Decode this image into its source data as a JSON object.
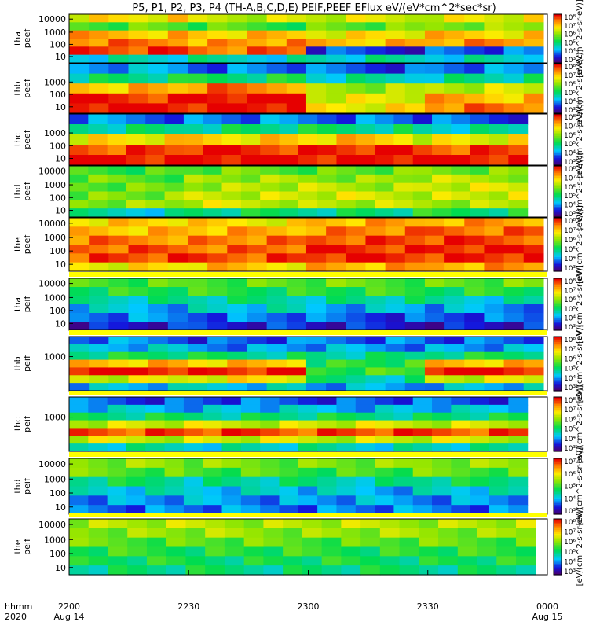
{
  "chart_data": {
    "type": "heatmap",
    "title": "P5, P1, P2, P3, P4 (TH-A,B,C,D,E) PEIF,PEEF EFlux eV/(eV*cm^2*sec*sr)",
    "colorbar_label": "[eV/(cm^2-s-sr-eV)]",
    "colormap": "rainbow",
    "x_axis": {
      "time_label": "hhmm",
      "year_label": "2020",
      "ticks": [
        {
          "time": "2200",
          "date": "Aug 14"
        },
        {
          "time": "2230",
          "date": ""
        },
        {
          "time": "2300",
          "date": ""
        },
        {
          "time": "2330",
          "date": ""
        },
        {
          "time": "0000",
          "date": "Aug 15"
        }
      ],
      "range": [
        "2020-08-14 22:00",
        "2020-08-15 00:00"
      ]
    },
    "panels": [
      {
        "probe": "tha",
        "species": "peef",
        "y_ticks": [
          "10000",
          "1000",
          "100",
          "10"
        ],
        "log_y": true,
        "cb_ticks": [
          "10⁸",
          "10⁷",
          "10⁶",
          "10⁵",
          "10⁴",
          "10³"
        ],
        "data_end": "23:59",
        "levels": [
          [
            2.2,
            1.6,
            2.4,
            2.6,
            2.8,
            1.0
          ],
          [
            2.0,
            1.5,
            2.3,
            2.5,
            2.7,
            1.0
          ],
          [
            2.0,
            1.6,
            2.2,
            2.4,
            0.4,
            1.0
          ],
          [
            2.1,
            1.8,
            2.3,
            2.5,
            0.5,
            1.0
          ]
        ]
      },
      {
        "probe": "thb",
        "species": "peef",
        "y_ticks": [
          "1000",
          "100",
          "10"
        ],
        "log_y": true,
        "cb_ticks": [
          "10⁸",
          "10⁷",
          "10⁶",
          "10⁵",
          "10⁴",
          "10³"
        ],
        "data_end": "23:59",
        "levels": [
          [
            0.7,
            1.2,
            2.4,
            2.9,
            3.0
          ],
          [
            0.6,
            1.3,
            2.6,
            3.0,
            3.0
          ],
          [
            0.5,
            1.0,
            1.8,
            2.1,
            2.2
          ],
          [
            0.6,
            1.1,
            2.0,
            2.4,
            2.6
          ]
        ]
      },
      {
        "probe": "thc",
        "species": "peef",
        "y_ticks": [
          "1000",
          "100",
          "10"
        ],
        "log_y": true,
        "cb_ticks": [
          "10⁸",
          "10⁷",
          "10⁶",
          "10⁵",
          "10⁴",
          "10³"
        ],
        "data_end": "23:55",
        "levels": [
          [
            0.6,
            1.1,
            2.2,
            2.8,
            3.0
          ],
          [
            0.6,
            1.2,
            2.3,
            2.9,
            3.0
          ],
          [
            0.6,
            1.2,
            2.3,
            2.9,
            3.0
          ],
          [
            0.5,
            1.0,
            2.1,
            2.8,
            3.0
          ]
        ]
      },
      {
        "probe": "thd",
        "species": "peef",
        "y_ticks": [
          "10000",
          "1000",
          "100",
          "10"
        ],
        "log_y": true,
        "cb_ticks": [
          "10⁸",
          "10⁷",
          "10⁶",
          "10⁵",
          "10⁴",
          "10³"
        ],
        "data_end": "23:55",
        "levels": [
          [
            1.5,
            1.6,
            1.6,
            1.7,
            1.8,
            1.0
          ],
          [
            1.6,
            1.8,
            1.9,
            2.0,
            2.0,
            1.2
          ],
          [
            1.6,
            1.8,
            1.9,
            2.0,
            1.9,
            1.2
          ],
          [
            1.7,
            1.9,
            2.0,
            2.0,
            1.9,
            1.3
          ]
        ]
      },
      {
        "probe": "the",
        "species": "peef",
        "y_ticks": [
          "10000",
          "1000",
          "100",
          "10"
        ],
        "log_y": true,
        "cb_ticks": [
          "10⁸",
          "10⁷",
          "10⁶",
          "10⁵",
          "10⁴",
          "10³"
        ],
        "data_end": "23:59",
        "levels": [
          [
            2.3,
            2.4,
            2.6,
            2.7,
            2.8,
            2.2
          ],
          [
            2.2,
            2.4,
            2.6,
            2.7,
            2.8,
            2.3
          ],
          [
            2.4,
            2.6,
            2.8,
            2.9,
            2.9,
            2.4
          ],
          [
            2.5,
            2.7,
            2.8,
            2.9,
            2.9,
            2.5
          ]
        ]
      },
      {
        "probe": "tha",
        "species": "peif",
        "y_ticks": [
          "10000",
          "1000",
          "100",
          "10"
        ],
        "log_y": true,
        "cb_ticks": [
          "10⁸",
          "10⁷",
          "10⁶",
          "10⁵",
          "10⁴",
          "10³"
        ],
        "data_end": "23:59",
        "levels": [
          [
            1.5,
            1.4,
            1.1,
            0.8,
            0.6,
            0.3
          ],
          [
            1.6,
            1.4,
            1.1,
            0.9,
            0.6,
            0.4
          ],
          [
            1.6,
            1.4,
            1.1,
            0.8,
            0.5,
            0.3
          ],
          [
            1.6,
            1.4,
            1.0,
            0.7,
            0.5,
            0.3
          ]
        ]
      },
      {
        "probe": "thb",
        "species": "peif",
        "y_ticks": [
          "1000"
        ],
        "log_y": true,
        "cb_ticks": [
          "10⁸",
          "10⁷",
          "10⁶",
          "10⁵",
          "10⁴",
          "10³"
        ],
        "data_end": "23:59",
        "levels": [
          [
            0.6,
            0.8,
            1.3,
            2.4,
            3.0,
            2.0,
            0.8
          ],
          [
            0.5,
            0.7,
            1.2,
            2.3,
            2.9,
            2.2,
            0.9
          ],
          [
            0.6,
            0.7,
            1.1,
            1.4,
            1.5,
            1.1,
            0.7
          ],
          [
            0.5,
            0.7,
            1.3,
            2.4,
            3.0,
            2.0,
            0.8
          ]
        ]
      },
      {
        "probe": "thc",
        "species": "peif",
        "y_ticks": [
          "1000"
        ],
        "log_y": true,
        "cb_ticks": [
          "10⁸",
          "10⁷",
          "10⁶",
          "10⁵",
          "10⁴",
          "10³"
        ],
        "data_end": "23:55",
        "levels": [
          [
            0.5,
            0.8,
            1.2,
            2.0,
            2.8,
            2.0,
            1.0
          ],
          [
            0.5,
            0.8,
            1.2,
            2.0,
            2.8,
            2.0,
            1.0
          ],
          [
            0.5,
            0.8,
            1.2,
            2.0,
            2.8,
            2.0,
            1.0
          ],
          [
            0.5,
            0.8,
            1.2,
            2.0,
            2.8,
            2.0,
            1.0
          ]
        ]
      },
      {
        "probe": "thd",
        "species": "peif",
        "y_ticks": [
          "10000",
          "1000",
          "100",
          "10"
        ],
        "log_y": true,
        "cb_ticks": [
          "10⁷",
          "10⁶",
          "10⁵",
          "10⁴",
          "10³"
        ],
        "data_end": "23:55",
        "levels": [
          [
            1.8,
            1.6,
            1.2,
            0.9,
            0.7,
            0.6
          ],
          [
            1.7,
            1.5,
            1.1,
            0.9,
            0.7,
            0.6
          ],
          [
            1.7,
            1.5,
            1.1,
            0.8,
            0.7,
            0.6
          ],
          [
            1.8,
            1.6,
            1.2,
            0.9,
            0.7,
            0.6
          ]
        ]
      },
      {
        "probe": "the",
        "species": "peif",
        "y_ticks": [
          "10000",
          "1000",
          "100",
          "10"
        ],
        "log_y": true,
        "cb_ticks": [
          "10⁸",
          "10⁷",
          "10⁶",
          "10⁵",
          "10⁴",
          "10³"
        ],
        "data_end": "23:57",
        "levels": [
          [
            1.9,
            1.8,
            1.6,
            1.4,
            1.3,
            1.2
          ],
          [
            1.9,
            1.8,
            1.6,
            1.4,
            1.3,
            1.2
          ],
          [
            1.9,
            1.8,
            1.6,
            1.4,
            1.3,
            1.2
          ],
          [
            1.9,
            1.8,
            1.6,
            1.4,
            1.3,
            1.2
          ]
        ]
      }
    ]
  }
}
